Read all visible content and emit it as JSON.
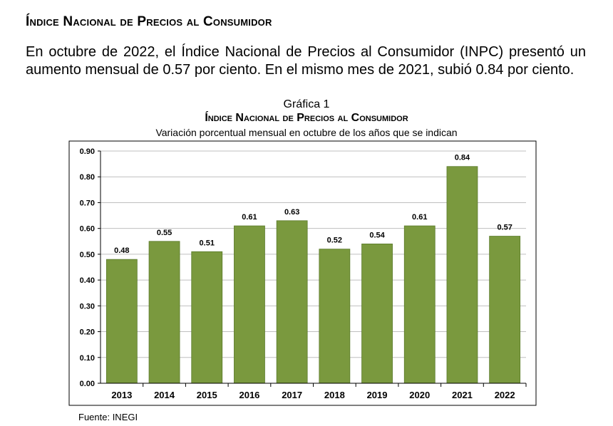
{
  "header": {
    "title": "Índice Nacional de Precios al Consumidor",
    "paragraph": "En octubre de 2022, el Índice Nacional de Precios al Consumidor (INPC) presentó un aumento mensual de 0.57 por ciento. En el mismo mes de 2021, subió 0.84 por ciento."
  },
  "figure": {
    "label": "Gráfica 1",
    "source": "Fuente: INEGI"
  },
  "colors": {
    "bar": "#7a993e",
    "bar_edge": "#5a7a2a",
    "grid": "#bfbfbf"
  },
  "chart_data": {
    "type": "bar",
    "title": "Índice Nacional de Precios al Consumidor",
    "subtitle": "Variación porcentual mensual en octubre de los años que se indican",
    "xlabel": "",
    "ylabel": "",
    "categories": [
      "2013",
      "2014",
      "2015",
      "2016",
      "2017",
      "2018",
      "2019",
      "2020",
      "2021",
      "2022"
    ],
    "values": [
      0.48,
      0.55,
      0.51,
      0.61,
      0.63,
      0.52,
      0.54,
      0.61,
      0.84,
      0.57
    ],
    "value_labels": [
      "0.48",
      "0.55",
      "0.51",
      "0.61",
      "0.63",
      "0.52",
      "0.54",
      "0.61",
      "0.84",
      "0.57"
    ],
    "ylim": [
      0,
      0.9
    ],
    "yticks": [
      "0.00",
      "0.10",
      "0.20",
      "0.30",
      "0.40",
      "0.50",
      "0.60",
      "0.70",
      "0.80",
      "0.90"
    ],
    "grid": true
  }
}
